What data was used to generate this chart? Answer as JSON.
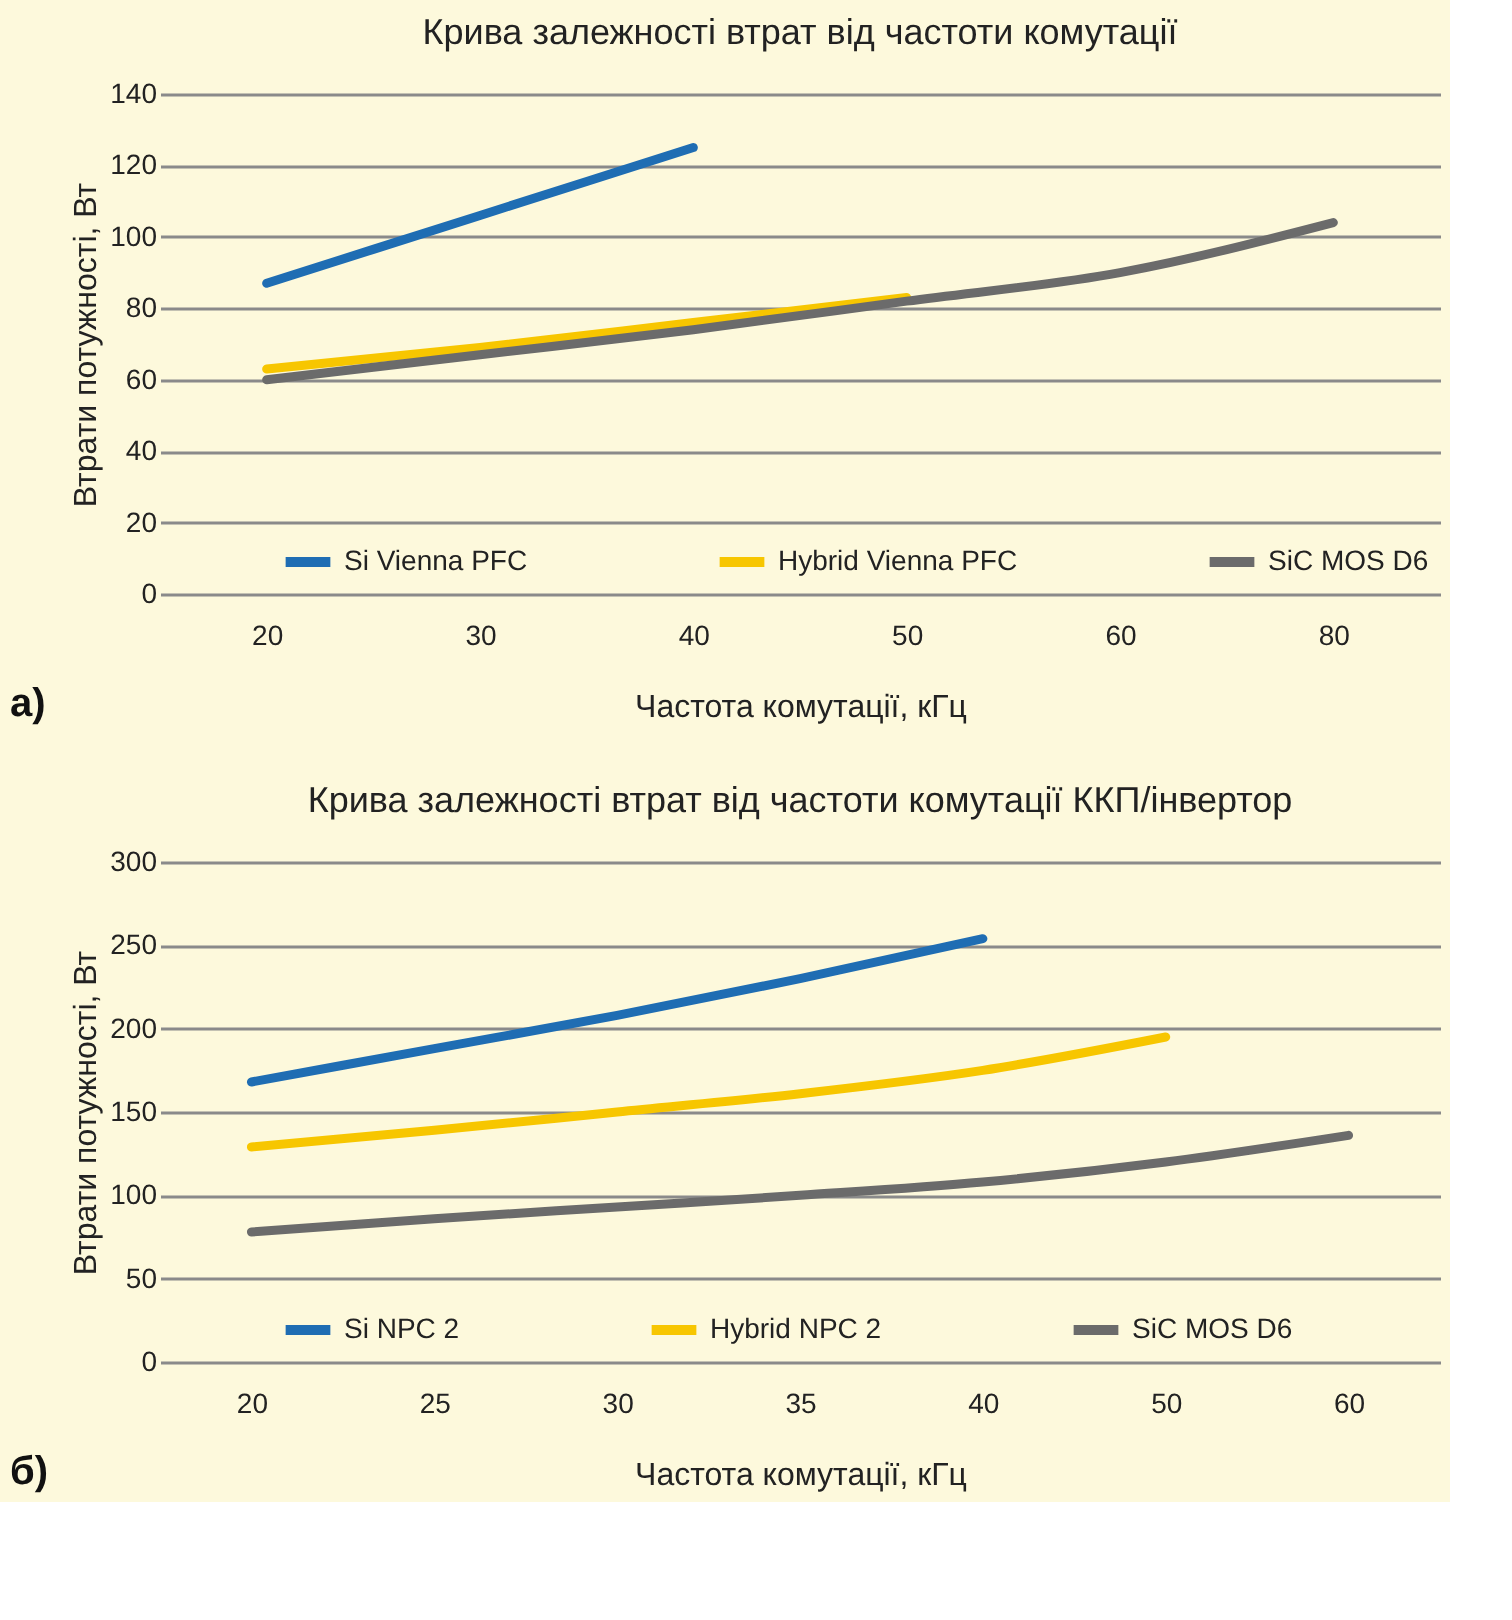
{
  "chart_data": [
    {
      "type": "line",
      "title": "Крива залежності втрат від частоти комутації",
      "xlabel": "Частота комутації, кГц",
      "ylabel": "Втрати потужності, Вт",
      "categories": [
        "20",
        "30",
        "40",
        "50",
        "60",
        "80"
      ],
      "ylim": [
        0,
        140
      ],
      "yticks": [
        0,
        20,
        40,
        60,
        80,
        100,
        120,
        140
      ],
      "grid": "y",
      "legend": "bottom",
      "line_style": "solid",
      "marker": "none",
      "series": [
        {
          "name": "Si Vienna PFC",
          "color": "#1f6db3",
          "values": [
            87,
            106,
            125,
            null,
            null,
            null
          ]
        },
        {
          "name": "Hybrid Vienna PFC",
          "color": "#f7c600",
          "values": [
            63,
            69,
            76,
            83,
            null,
            null
          ]
        },
        {
          "name": "SiC MOS D6",
          "color": "#6b6b6b",
          "values": [
            60,
            67,
            74,
            82,
            90,
            104
          ]
        }
      ],
      "annotations": [
        "а)"
      ]
    },
    {
      "type": "line",
      "title": "Крива залежності втрат від частоти комутації ККП/інвертор",
      "xlabel": "Частота комутації, кГц",
      "ylabel": "Втрати потужності, Вт",
      "categories": [
        "20",
        "25",
        "30",
        "35",
        "40",
        "50",
        "60"
      ],
      "ylim": [
        0,
        300
      ],
      "yticks": [
        0,
        50,
        100,
        150,
        200,
        250,
        300
      ],
      "grid": "y",
      "legend": "bottom",
      "line_style": "solid",
      "marker": "none",
      "series": [
        {
          "name": "Si NPC 2",
          "color": "#1f6db3",
          "values": [
            168,
            188,
            208,
            230,
            254,
            null,
            null
          ]
        },
        {
          "name": "Hybrid NPC 2",
          "color": "#f7c600",
          "values": [
            129,
            139,
            150,
            161,
            175,
            195,
            null
          ]
        },
        {
          "name": "SiC MOS D6",
          "color": "#6b6b6b",
          "values": [
            78,
            86,
            93,
            100,
            108,
            120,
            136
          ]
        }
      ],
      "annotations": [
        "б)"
      ]
    }
  ]
}
